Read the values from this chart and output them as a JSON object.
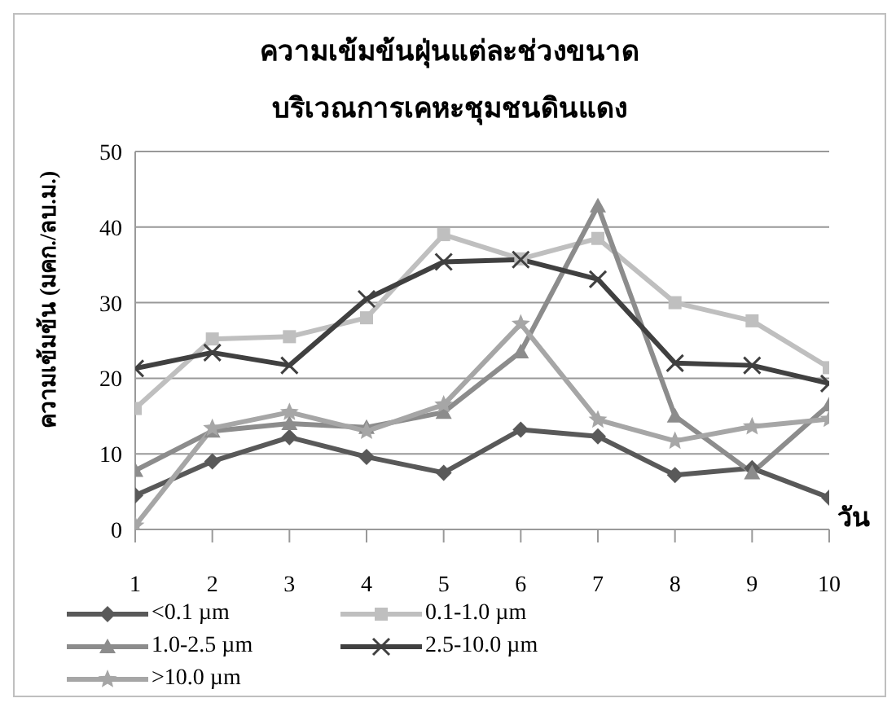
{
  "chart_data": {
    "type": "line",
    "title": "ความเข้มข้นฝุ่นแต่ละช่วงขนาด",
    "subtitle": "บริเวณการเคหะชุมชนดินแดง",
    "xlabel": "วัน",
    "ylabel": "ความเข้มข้น (มคก./ลบ.ม.)",
    "categories": [
      "1",
      "2",
      "3",
      "4",
      "5",
      "6",
      "7",
      "8",
      "9",
      "10"
    ],
    "series": [
      {
        "name": "<0.1 µm",
        "color": "#595959",
        "marker": "diamond",
        "values": [
          4.5,
          9,
          12.2,
          9.6,
          7.5,
          13.2,
          12.3,
          7.2,
          8.1,
          4.2
        ]
      },
      {
        "name": "0.1-1.0 µm",
        "color": "#bfbfbf",
        "marker": "square",
        "values": [
          16,
          25.2,
          25.5,
          28,
          39,
          35.8,
          38.5,
          30,
          27.6,
          21.4
        ]
      },
      {
        "name": "1.0-2.5 µm",
        "color": "#8c8c8c",
        "marker": "triangle",
        "values": [
          7.8,
          13,
          14,
          13.5,
          15.5,
          23.5,
          42.8,
          15,
          7.5,
          16.5
        ]
      },
      {
        "name": "2.5-10.0 µm",
        "color": "#404040",
        "marker": "cross",
        "values": [
          21.3,
          23.4,
          21.7,
          30.5,
          35.4,
          35.7,
          33.1,
          22,
          21.7,
          19.3
        ]
      },
      {
        "name": ">10.0 µm",
        "color": "#a6a6a6",
        "marker": "star",
        "values": [
          0.5,
          13.4,
          15.5,
          13,
          16.5,
          27.2,
          14.5,
          11.7,
          13.6,
          14.6
        ]
      }
    ],
    "ylim": [
      0,
      50
    ],
    "yticks": [
      0,
      10,
      20,
      30,
      40,
      50
    ],
    "grid": "y",
    "legend": "bottom",
    "line_style": "solid"
  }
}
